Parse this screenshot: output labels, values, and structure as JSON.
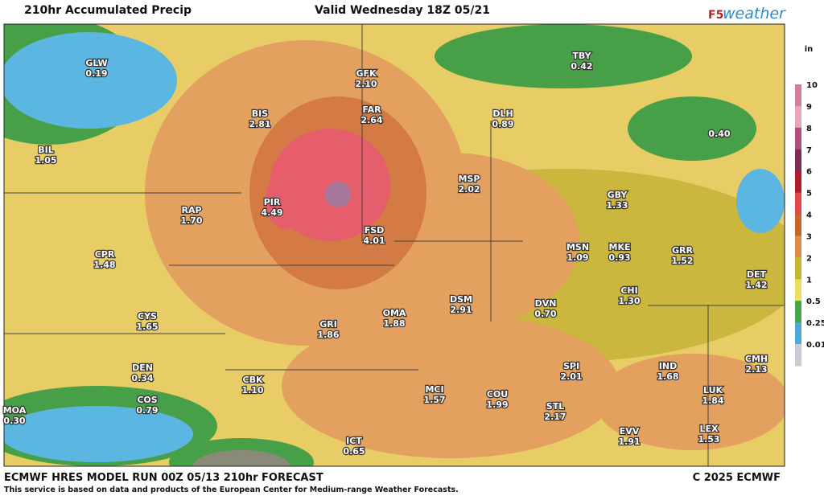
{
  "header": {
    "title": "210hr Accumulated Precip",
    "valid": "Valid Wednesday 18Z 05/21",
    "logo_prefix": "F5",
    "logo_suffix": "weather"
  },
  "legend": {
    "unit": "in",
    "levels": [
      {
        "label": "10",
        "color": "#d47c9c"
      },
      {
        "label": "9",
        "color": "#e8a6bd"
      },
      {
        "label": "8",
        "color": "#b0507a"
      },
      {
        "label": "7",
        "color": "#7a2c55"
      },
      {
        "label": "6",
        "color": "#b21c2c"
      },
      {
        "label": "5",
        "color": "#e24a4a"
      },
      {
        "label": "4",
        "color": "#c8642e"
      },
      {
        "label": "3",
        "color": "#e08a52"
      },
      {
        "label": "2",
        "color": "#c6b634"
      },
      {
        "label": "1",
        "color": "#eedb62"
      },
      {
        "label": "0.5",
        "color": "#4aa24a"
      },
      {
        "label": "0.25",
        "color": "#4aaad8"
      },
      {
        "label": "0.01",
        "color": "#c8cad8"
      }
    ]
  },
  "stations": [
    {
      "name": "GLW",
      "value": "0.19"
    },
    {
      "name": "BIL",
      "value": "1.05"
    },
    {
      "name": "BIS",
      "value": "2.81"
    },
    {
      "name": "GFK",
      "value": "2.10"
    },
    {
      "name": "FAR",
      "value": "2.64"
    },
    {
      "name": "DLH",
      "value": "0.89"
    },
    {
      "name": "TBY",
      "value": "0.42"
    },
    {
      "name": null,
      "value": "0.40"
    },
    {
      "name": "RAP",
      "value": "1.70"
    },
    {
      "name": "PIR",
      "value": "4.49"
    },
    {
      "name": "FSD",
      "value": "4.01"
    },
    {
      "name": "MSP",
      "value": "2.02"
    },
    {
      "name": "GBY",
      "value": "1.33"
    },
    {
      "name": "CPR",
      "value": "1.48"
    },
    {
      "name": "MSN",
      "value": "1.09"
    },
    {
      "name": "MKE",
      "value": "0.93"
    },
    {
      "name": "GRR",
      "value": "1.52"
    },
    {
      "name": "DET",
      "value": "1.42"
    },
    {
      "name": "CHI",
      "value": "1.30"
    },
    {
      "name": "CYS",
      "value": "1.65"
    },
    {
      "name": "GRI",
      "value": "1.86"
    },
    {
      "name": "OMA",
      "value": "1.88"
    },
    {
      "name": "DSM",
      "value": "2.91"
    },
    {
      "name": "DVN",
      "value": "0.70"
    },
    {
      "name": "DEN",
      "value": "0.34"
    },
    {
      "name": "SPI",
      "value": "2.01"
    },
    {
      "name": "IND",
      "value": "1.68"
    },
    {
      "name": "CMH",
      "value": "2.13"
    },
    {
      "name": "CBK",
      "value": "1.10"
    },
    {
      "name": "MCI",
      "value": "1.57"
    },
    {
      "name": "COU",
      "value": "1.99"
    },
    {
      "name": "LUK",
      "value": "1.84"
    },
    {
      "name": "COS",
      "value": "0.79"
    },
    {
      "name": "MOA",
      "value": "0.30"
    },
    {
      "name": "STL",
      "value": "2.17"
    },
    {
      "name": "EVV",
      "value": "1.91"
    },
    {
      "name": "LEX",
      "value": "1.53"
    },
    {
      "name": "ICT",
      "value": "0.65"
    }
  ],
  "footer": {
    "model": "ECMWF HRES MODEL RUN 00Z 05/13 210hr FORECAST",
    "notice": "This service is based on data and products of the European Center for Medium-range Weather Forecasts.",
    "copyright": "C 2025 ECMWF"
  }
}
